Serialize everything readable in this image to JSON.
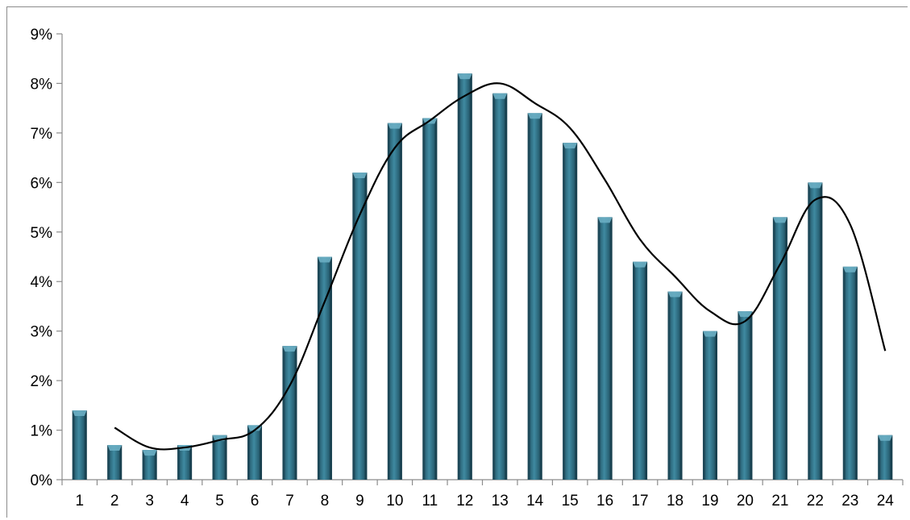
{
  "chart_data": {
    "type": "bar",
    "categories": [
      "1",
      "2",
      "3",
      "4",
      "5",
      "6",
      "7",
      "8",
      "9",
      "10",
      "11",
      "12",
      "13",
      "14",
      "15",
      "16",
      "17",
      "18",
      "19",
      "20",
      "21",
      "22",
      "23",
      "24"
    ],
    "series": [
      {
        "type": "bar",
        "values": [
          1.4,
          0.7,
          0.6,
          0.7,
          0.9,
          1.1,
          2.7,
          4.5,
          6.2,
          7.2,
          7.3,
          8.2,
          7.8,
          7.4,
          6.8,
          5.3,
          4.4,
          3.8,
          3.0,
          3.4,
          5.3,
          6.0,
          4.3,
          0.9
        ],
        "color": "#2e6b80"
      },
      {
        "type": "line",
        "x": [
          "2",
          "3",
          "4",
          "5",
          "6",
          "7",
          "8",
          "9",
          "10",
          "11",
          "12",
          "13",
          "14",
          "15",
          "16",
          "17",
          "18",
          "19",
          "20",
          "21",
          "22",
          "23",
          "24"
        ],
        "values": [
          1.05,
          0.65,
          0.65,
          0.8,
          1.0,
          1.9,
          3.6,
          5.35,
          6.7,
          7.25,
          7.75,
          8.0,
          7.6,
          7.1,
          6.05,
          4.85,
          4.1,
          3.4,
          3.2,
          4.35,
          5.65,
          5.15,
          2.6
        ],
        "color": "#000000"
      }
    ],
    "y_ticks": [
      "0%",
      "1%",
      "2%",
      "3%",
      "4%",
      "5%",
      "6%",
      "7%",
      "8%",
      "9%"
    ],
    "ylim": [
      0,
      9
    ],
    "y_unit": "%",
    "grid": false,
    "legend": "none",
    "title": "",
    "xlabel": "",
    "ylabel": ""
  }
}
